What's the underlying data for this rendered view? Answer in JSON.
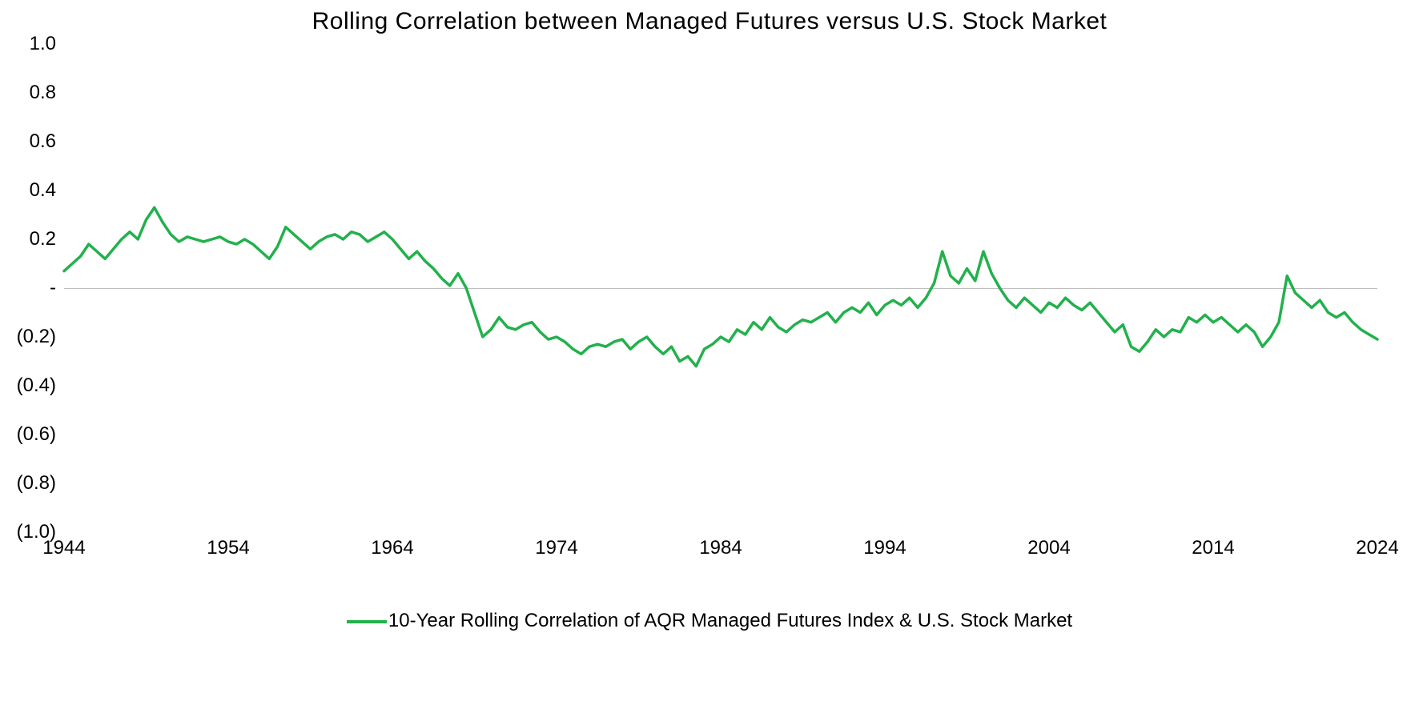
{
  "chart": {
    "type": "line",
    "title": "Rolling Correlation between Managed Futures versus U.S. Stock Market",
    "title_fontsize": 30,
    "background_color": "#ffffff",
    "axis_line_color": "#bfbfbf",
    "label_fontsize": 24,
    "label_color": "#000000",
    "x": {
      "min": 1944,
      "max": 2024,
      "ticks": [
        1944,
        1954,
        1964,
        1974,
        1984,
        1994,
        2004,
        2014,
        2024
      ],
      "tick_labels": [
        "1944",
        "1954",
        "1964",
        "1974",
        "1984",
        "1994",
        "2004",
        "2014",
        "2024"
      ]
    },
    "y": {
      "min": -1.0,
      "max": 1.0,
      "ticks": [
        -1.0,
        -0.8,
        -0.6,
        -0.4,
        -0.2,
        0,
        0.2,
        0.4,
        0.6,
        0.8,
        1.0
      ],
      "tick_labels": [
        "(1.0)",
        "(0.8)",
        "(0.6)",
        "(0.4)",
        "(0.2)",
        "-",
        "0.2",
        "0.4",
        "0.6",
        "0.8",
        "1.0"
      ]
    },
    "series": [
      {
        "name": "10-Year Rolling Correlation of AQR Managed Futures Index & U.S. Stock Market",
        "color": "#22b14c",
        "line_width": 3.5,
        "x": [
          1944,
          1944.5,
          1945,
          1945.5,
          1946,
          1946.5,
          1947,
          1947.5,
          1948,
          1948.5,
          1949,
          1949.5,
          1950,
          1950.5,
          1951,
          1951.5,
          1952,
          1952.5,
          1953,
          1953.5,
          1954,
          1954.5,
          1955,
          1955.5,
          1956,
          1956.5,
          1957,
          1957.5,
          1958,
          1958.5,
          1959,
          1959.5,
          1960,
          1960.5,
          1961,
          1961.5,
          1962,
          1962.5,
          1963,
          1963.5,
          1964,
          1964.5,
          1965,
          1965.5,
          1966,
          1966.5,
          1967,
          1967.5,
          1968,
          1968.5,
          1969,
          1969.5,
          1970,
          1970.5,
          1971,
          1971.5,
          1972,
          1972.5,
          1973,
          1973.5,
          1974,
          1974.5,
          1975,
          1975.5,
          1976,
          1976.5,
          1977,
          1977.5,
          1978,
          1978.5,
          1979,
          1979.5,
          1980,
          1980.5,
          1981,
          1981.5,
          1982,
          1982.5,
          1983,
          1983.5,
          1984,
          1984.5,
          1985,
          1985.5,
          1986,
          1986.5,
          1987,
          1987.5,
          1988,
          1988.5,
          1989,
          1989.5,
          1990,
          1990.5,
          1991,
          1991.5,
          1992,
          1992.5,
          1993,
          1993.5,
          1994,
          1994.5,
          1995,
          1995.5,
          1996,
          1996.5,
          1997,
          1997.5,
          1998,
          1998.5,
          1999,
          1999.5,
          2000,
          2000.5,
          2001,
          2001.5,
          2002,
          2002.5,
          2003,
          2003.5,
          2004,
          2004.5,
          2005,
          2005.5,
          2006,
          2006.5,
          2007,
          2007.5,
          2008,
          2008.5,
          2009,
          2009.5,
          2010,
          2010.5,
          2011,
          2011.5,
          2012,
          2012.5,
          2013,
          2013.5,
          2014,
          2014.5,
          2015,
          2015.5,
          2016,
          2016.5,
          2017,
          2017.5,
          2018,
          2018.5,
          2019,
          2019.5,
          2020,
          2020.5,
          2021,
          2021.5,
          2022,
          2022.5,
          2023,
          2023.5,
          2024
        ],
        "y": [
          0.07,
          0.1,
          0.13,
          0.18,
          0.15,
          0.12,
          0.16,
          0.2,
          0.23,
          0.2,
          0.28,
          0.33,
          0.27,
          0.22,
          0.19,
          0.21,
          0.2,
          0.19,
          0.2,
          0.21,
          0.19,
          0.18,
          0.2,
          0.18,
          0.15,
          0.12,
          0.17,
          0.25,
          0.22,
          0.19,
          0.16,
          0.19,
          0.21,
          0.22,
          0.2,
          0.23,
          0.22,
          0.19,
          0.21,
          0.23,
          0.2,
          0.16,
          0.12,
          0.15,
          0.11,
          0.08,
          0.04,
          0.01,
          0.06,
          0.0,
          -0.1,
          -0.2,
          -0.17,
          -0.12,
          -0.16,
          -0.17,
          -0.15,
          -0.14,
          -0.18,
          -0.21,
          -0.2,
          -0.22,
          -0.25,
          -0.27,
          -0.24,
          -0.23,
          -0.24,
          -0.22,
          -0.21,
          -0.25,
          -0.22,
          -0.2,
          -0.24,
          -0.27,
          -0.24,
          -0.3,
          -0.28,
          -0.32,
          -0.25,
          -0.23,
          -0.2,
          -0.22,
          -0.17,
          -0.19,
          -0.14,
          -0.17,
          -0.12,
          -0.16,
          -0.18,
          -0.15,
          -0.13,
          -0.14,
          -0.12,
          -0.1,
          -0.14,
          -0.1,
          -0.08,
          -0.1,
          -0.06,
          -0.11,
          -0.07,
          -0.05,
          -0.07,
          -0.04,
          -0.08,
          -0.04,
          0.02,
          0.15,
          0.05,
          0.02,
          0.08,
          0.03,
          0.15,
          0.06,
          0.0,
          -0.05,
          -0.08,
          -0.04,
          -0.07,
          -0.1,
          -0.06,
          -0.08,
          -0.04,
          -0.07,
          -0.09,
          -0.06,
          -0.1,
          -0.14,
          -0.18,
          -0.15,
          -0.24,
          -0.26,
          -0.22,
          -0.17,
          -0.2,
          -0.17,
          -0.18,
          -0.12,
          -0.14,
          -0.11,
          -0.14,
          -0.12,
          -0.15,
          -0.18,
          -0.15,
          -0.18,
          -0.24,
          -0.2,
          -0.14,
          0.05,
          -0.02,
          -0.05,
          -0.08,
          -0.05,
          -0.1,
          -0.12,
          -0.1,
          -0.14,
          -0.17,
          -0.19,
          -0.21
        ]
      }
    ],
    "legend": {
      "position": "bottom",
      "fontsize": 24
    }
  }
}
